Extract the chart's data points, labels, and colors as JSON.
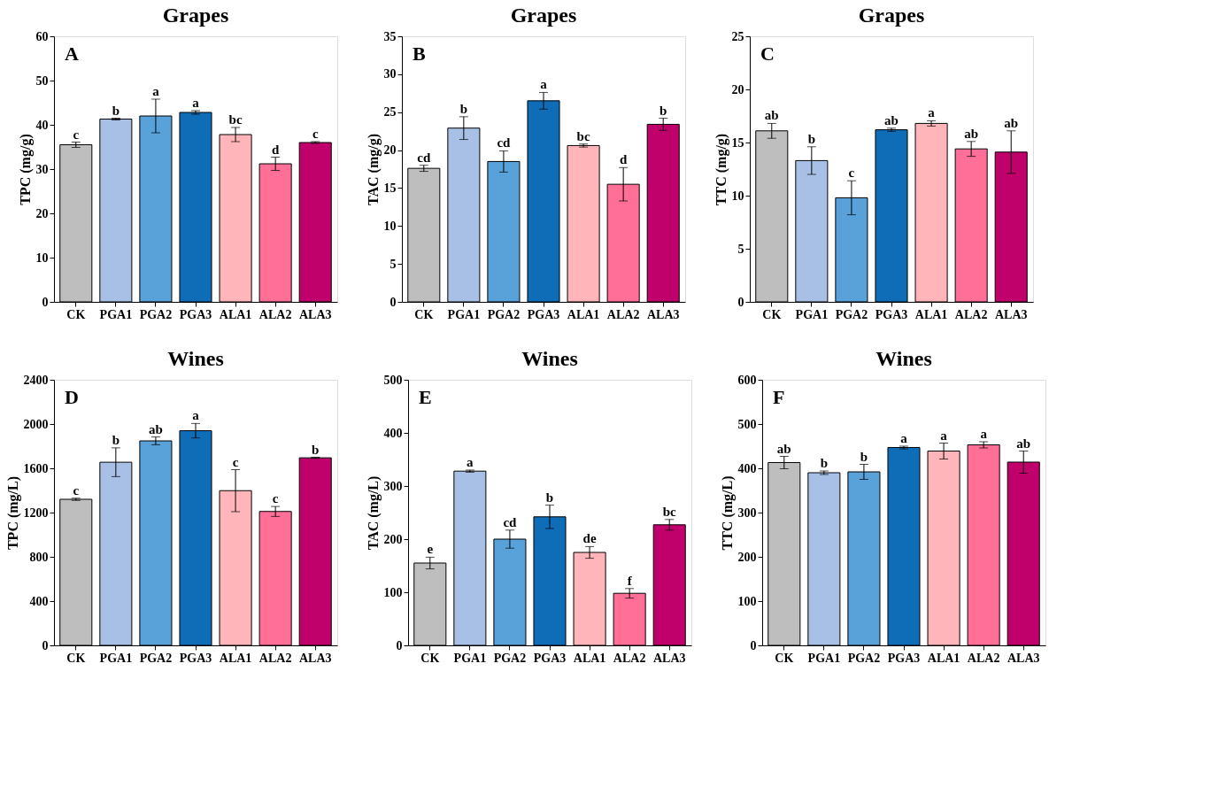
{
  "chart_data": [
    {
      "type": "bar",
      "title": "Grapes",
      "ylabel": "TPC (mg/g)",
      "categories": [
        "CK",
        "PGA1",
        "PGA2",
        "PGA3",
        "ALA1",
        "ALA2",
        "ALA3"
      ],
      "values": [
        35.5,
        41.3,
        42.0,
        42.8,
        37.8,
        31.2,
        36.0
      ],
      "errors": [
        0.6,
        0.2,
        3.8,
        0.4,
        1.6,
        1.5,
        0.2
      ],
      "colors": [
        "#bebebe",
        "#a9c0e6",
        "#58a1d9",
        "#0f6cb7",
        "#ffb5b9",
        "#ff6f98",
        "#c0006b"
      ],
      "ylim": [
        0,
        60
      ],
      "yticks": [
        0,
        10,
        20,
        30,
        40,
        50,
        60
      ],
      "grid": false,
      "annotations": [
        "A",
        {
          "text": "c",
          "x": "CK",
          "y": 36.1
        },
        {
          "text": "b",
          "x": "PGA1",
          "y": 41.5
        },
        {
          "text": "a",
          "x": "PGA2",
          "y": 45.8
        },
        {
          "text": "a",
          "x": "PGA3",
          "y": 43.2
        },
        {
          "text": "bc",
          "x": "ALA1",
          "y": 39.4
        },
        {
          "text": "d",
          "x": "ALA2",
          "y": 32.7
        },
        {
          "text": "c",
          "x": "ALA3",
          "y": 36.2
        }
      ]
    },
    {
      "type": "bar",
      "title": "Grapes",
      "ylabel": "TAC (mg/g)",
      "categories": [
        "CK",
        "PGA1",
        "PGA2",
        "PGA3",
        "ALA1",
        "ALA2",
        "ALA3"
      ],
      "values": [
        17.6,
        22.9,
        18.5,
        26.5,
        20.6,
        15.5,
        23.4
      ],
      "errors": [
        0.4,
        1.5,
        1.4,
        1.1,
        0.2,
        2.2,
        0.8
      ],
      "colors": [
        "#bebebe",
        "#a9c0e6",
        "#58a1d9",
        "#0f6cb7",
        "#ffb5b9",
        "#ff6f98",
        "#c0006b"
      ],
      "ylim": [
        0,
        35
      ],
      "yticks": [
        0,
        5,
        10,
        15,
        20,
        25,
        30,
        35
      ],
      "grid": false,
      "annotations": [
        "B",
        {
          "text": "cd",
          "x": "CK",
          "y": 18.0
        },
        {
          "text": "b",
          "x": "PGA1",
          "y": 24.4
        },
        {
          "text": "cd",
          "x": "PGA2",
          "y": 19.9
        },
        {
          "text": "a",
          "x": "PGA3",
          "y": 27.6
        },
        {
          "text": "bc",
          "x": "ALA1",
          "y": 20.8
        },
        {
          "text": "d",
          "x": "ALA2",
          "y": 17.7
        },
        {
          "text": "b",
          "x": "ALA3",
          "y": 24.2
        }
      ]
    },
    {
      "type": "bar",
      "title": "Grapes",
      "ylabel": "TTC (mg/g)",
      "categories": [
        "CK",
        "PGA1",
        "PGA2",
        "PGA3",
        "ALA1",
        "ALA2",
        "ALA3"
      ],
      "values": [
        16.1,
        13.3,
        9.8,
        16.2,
        16.8,
        14.4,
        14.1
      ],
      "errors": [
        0.7,
        1.3,
        1.6,
        0.15,
        0.25,
        0.7,
        2.0
      ],
      "colors": [
        "#bebebe",
        "#a9c0e6",
        "#58a1d9",
        "#0f6cb7",
        "#ffb5b9",
        "#ff6f98",
        "#c0006b"
      ],
      "ylim": [
        0,
        25
      ],
      "yticks": [
        0,
        5,
        10,
        15,
        20,
        25
      ],
      "grid": false,
      "annotations": [
        "C",
        {
          "text": "ab",
          "x": "CK",
          "y": 16.8
        },
        {
          "text": "b",
          "x": "PGA1",
          "y": 14.6
        },
        {
          "text": "c",
          "x": "PGA2",
          "y": 11.4
        },
        {
          "text": "ab",
          "x": "PGA3",
          "y": 16.35
        },
        {
          "text": "a",
          "x": "ALA1",
          "y": 17.05
        },
        {
          "text": "ab",
          "x": "ALA2",
          "y": 15.1
        },
        {
          "text": "ab",
          "x": "ALA3",
          "y": 16.1
        }
      ]
    },
    {
      "type": "bar",
      "title": "Wines",
      "ylabel": "TPC (mg/L)",
      "categories": [
        "CK",
        "PGA1",
        "PGA2",
        "PGA3",
        "ALA1",
        "ALA2",
        "ALA3"
      ],
      "values": [
        1320,
        1655,
        1848,
        1940,
        1398,
        1210,
        1695
      ],
      "errors": [
        10,
        130,
        35,
        65,
        190,
        45,
        5
      ],
      "colors": [
        "#bebebe",
        "#a9c0e6",
        "#58a1d9",
        "#0f6cb7",
        "#ffb5b9",
        "#ff6f98",
        "#c0006b"
      ],
      "ylim": [
        0,
        2400
      ],
      "yticks": [
        0,
        400,
        800,
        1200,
        1600,
        2000,
        2400
      ],
      "grid": false,
      "annotations": [
        "D",
        {
          "text": "c",
          "x": "CK",
          "y": 1330
        },
        {
          "text": "b",
          "x": "PGA1",
          "y": 1785
        },
        {
          "text": "ab",
          "x": "PGA2",
          "y": 1883
        },
        {
          "text": "a",
          "x": "PGA3",
          "y": 2005
        },
        {
          "text": "c",
          "x": "ALA1",
          "y": 1588
        },
        {
          "text": "c",
          "x": "ALA2",
          "y": 1255
        },
        {
          "text": "b",
          "x": "ALA3",
          "y": 1700
        }
      ]
    },
    {
      "type": "bar",
      "title": "Wines",
      "ylabel": "TAC (mg/L)",
      "categories": [
        "CK",
        "PGA1",
        "PGA2",
        "PGA3",
        "ALA1",
        "ALA2",
        "ALA3"
      ],
      "values": [
        155,
        328,
        200,
        242,
        175,
        98,
        227
      ],
      "errors": [
        11,
        2,
        17,
        22,
        11,
        9,
        10
      ],
      "colors": [
        "#bebebe",
        "#a9c0e6",
        "#58a1d9",
        "#0f6cb7",
        "#ffb5b9",
        "#ff6f98",
        "#c0006b"
      ],
      "ylim": [
        0,
        500
      ],
      "yticks": [
        0,
        100,
        200,
        300,
        400,
        500
      ],
      "grid": false,
      "annotations": [
        "E",
        {
          "text": "e",
          "x": "CK",
          "y": 166
        },
        {
          "text": "a",
          "x": "PGA1",
          "y": 330
        },
        {
          "text": "cd",
          "x": "PGA2",
          "y": 217
        },
        {
          "text": "b",
          "x": "PGA3",
          "y": 264
        },
        {
          "text": "de",
          "x": "ALA1",
          "y": 186
        },
        {
          "text": "f",
          "x": "ALA2",
          "y": 107
        },
        {
          "text": "bc",
          "x": "ALA3",
          "y": 237
        }
      ]
    },
    {
      "type": "bar",
      "title": "Wines",
      "ylabel": "TTC (mg/L)",
      "categories": [
        "CK",
        "PGA1",
        "PGA2",
        "PGA3",
        "ALA1",
        "ALA2",
        "ALA3"
      ],
      "values": [
        413,
        390,
        392,
        447,
        439,
        453,
        414
      ],
      "errors": [
        14,
        4,
        17,
        3,
        18,
        7,
        25
      ],
      "colors": [
        "#bebebe",
        "#a9c0e6",
        "#58a1d9",
        "#0f6cb7",
        "#ffb5b9",
        "#ff6f98",
        "#c0006b"
      ],
      "ylim": [
        0,
        600
      ],
      "yticks": [
        0,
        100,
        200,
        300,
        400,
        500,
        600
      ],
      "grid": false,
      "annotations": [
        "F",
        {
          "text": "ab",
          "x": "CK",
          "y": 427
        },
        {
          "text": "b",
          "x": "PGA1",
          "y": 394
        },
        {
          "text": "b",
          "x": "PGA2",
          "y": 409
        },
        {
          "text": "a",
          "x": "PGA3",
          "y": 450
        },
        {
          "text": "a",
          "x": "ALA1",
          "y": 457
        },
        {
          "text": "a",
          "x": "ALA2",
          "y": 460
        },
        {
          "text": "ab",
          "x": "ALA3",
          "y": 439
        }
      ]
    }
  ]
}
